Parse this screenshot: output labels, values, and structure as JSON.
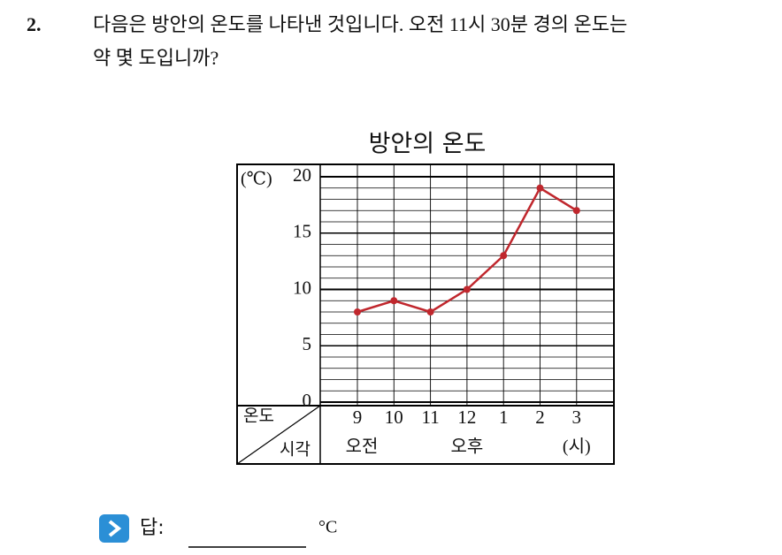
{
  "question": {
    "number": "2.",
    "lines": [
      "다음은 방안의 온도를 나타낸 것입니다. 오전 11시 30분 경의 온도는",
      "약 몇 도입니까?"
    ]
  },
  "chart_data": {
    "type": "line",
    "title": "방안의 온도",
    "y_label": "(℃)",
    "categories": [
      "9",
      "10",
      "11",
      "12",
      "1",
      "2",
      "3"
    ],
    "period_labels": [
      "오전",
      null,
      null,
      "오후",
      null,
      null,
      "(시)"
    ],
    "corner_labels": {
      "value": "온도",
      "category": "시각"
    },
    "series": [
      {
        "name": "온도",
        "color": "#c0272d",
        "values": [
          8,
          9,
          8,
          10,
          13,
          19,
          17
        ]
      }
    ],
    "ylim": [
      0,
      20
    ],
    "yticks": [
      0,
      5,
      10,
      15,
      20
    ],
    "grid": true
  },
  "answer": {
    "label": "답:",
    "unit": "°C"
  }
}
